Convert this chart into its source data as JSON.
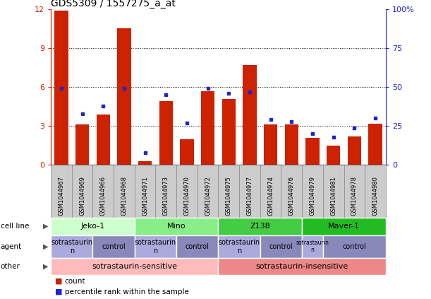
{
  "title": "GDS5309 / 1557275_a_at",
  "samples": [
    "GSM1044967",
    "GSM1044969",
    "GSM1044966",
    "GSM1044968",
    "GSM1044971",
    "GSM1044973",
    "GSM1044970",
    "GSM1044972",
    "GSM1044975",
    "GSM1044977",
    "GSM1044974",
    "GSM1044976",
    "GSM1044979",
    "GSM1044981",
    "GSM1044978",
    "GSM1044980"
  ],
  "counts": [
    11.9,
    3.1,
    3.9,
    10.5,
    0.3,
    4.9,
    2.0,
    5.7,
    5.1,
    7.7,
    3.1,
    3.1,
    2.1,
    1.5,
    2.2,
    3.2
  ],
  "percentiles": [
    49,
    33,
    38,
    49,
    8,
    45,
    27,
    49,
    46,
    47,
    29,
    28,
    20,
    18,
    24,
    30
  ],
  "bar_color": "#cc2200",
  "dot_color": "#2222cc",
  "ylim_left": [
    0,
    12
  ],
  "ylim_right": [
    0,
    100
  ],
  "yticks_left": [
    0,
    3,
    6,
    9,
    12
  ],
  "yticks_right": [
    0,
    25,
    50,
    75,
    100
  ],
  "ytick_labels_right": [
    "0",
    "25",
    "50",
    "75",
    "100%"
  ],
  "cell_lines": [
    "Jeko-1",
    "Mino",
    "Z138",
    "Maver-1"
  ],
  "cell_line_spans": [
    4,
    4,
    4,
    4
  ],
  "cell_line_colors": [
    "#ccffcc",
    "#88ee88",
    "#44cc44",
    "#22bb22"
  ],
  "agent_groups_labels": [
    "sotrastaurin",
    "control",
    "sotrastaurin",
    "control",
    "sotrastaurin",
    "control",
    "sotrastaurin",
    "control"
  ],
  "agent_groups_spans": [
    2,
    2,
    2,
    2,
    2,
    2,
    1,
    3
  ],
  "agent_sotrastaurin_color": "#aaaadd",
  "agent_control_color": "#8888bb",
  "other_groups_labels": [
    "sotrastaurin-sensitive",
    "sotrastaurin-insensitive"
  ],
  "other_groups_spans": [
    8,
    8
  ],
  "other_sensitive_color": "#ffbbbb",
  "other_insensitive_color": "#ee8888",
  "legend_count_label": "count",
  "legend_pct_label": "percentile rank within the sample",
  "sample_box_color": "#cccccc",
  "sample_box_border": "#888888"
}
